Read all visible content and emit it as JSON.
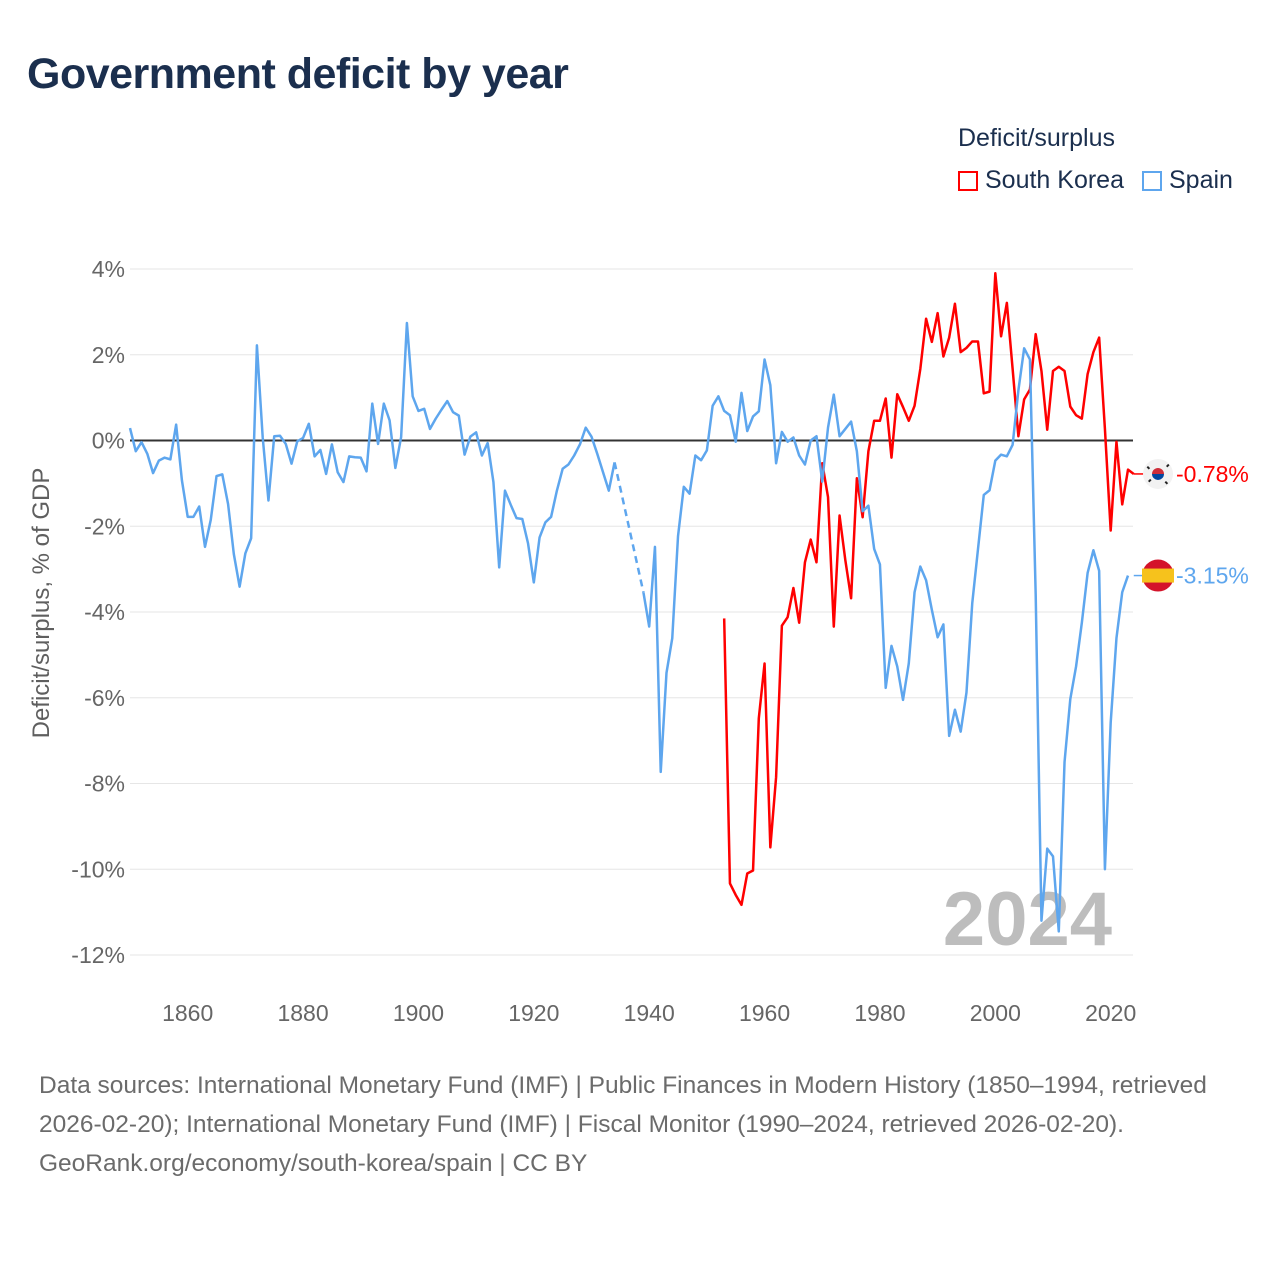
{
  "title": "Government deficit by year",
  "legend": {
    "title": "Deficit/surplus",
    "items": [
      {
        "label": "South Korea",
        "color": "#ff0000"
      },
      {
        "label": "Spain",
        "color": "#5ea6ee"
      }
    ]
  },
  "year_watermark": "2024",
  "end_labels": {
    "south_korea": "-0.78%",
    "spain": "-3.15%"
  },
  "footer": {
    "sources": "Data sources: International Monetary Fund (IMF) | Public Finances in Modern History (1850–1994, retrieved 2026-02-20); International Monetary Fund (IMF) | Fiscal Monitor (1990–2024, retrieved 2026-02-20).",
    "credit": "GeoRank.org/economy/south-korea/spain | CC BY"
  },
  "chart_data": {
    "type": "line",
    "title": "Government deficit by year",
    "xlabel": "",
    "ylabel": "Deficit/surplus, % of GDP",
    "xlim": [
      1850,
      2024
    ],
    "ylim": [
      -12,
      4
    ],
    "xticks": [
      1860,
      1880,
      1900,
      1920,
      1940,
      1960,
      1980,
      2000,
      2020
    ],
    "xtick_labels": [
      "1860",
      "1880",
      "1900",
      "1920",
      "1940",
      "1960",
      "1980",
      "2000",
      "2020"
    ],
    "yticks": [
      4,
      2,
      0,
      -2,
      -4,
      -6,
      -8,
      -10,
      -12
    ],
    "ytick_labels": [
      "4%",
      "2%",
      "0%",
      "-2%",
      "-4%",
      "-6%",
      "-8%",
      "-10%",
      "-12%"
    ],
    "grid": true,
    "legend_position": "top-right",
    "series": [
      {
        "name": "Spain",
        "color": "#5ea6ee",
        "start_year": 1850,
        "values": [
          0.29,
          -0.25,
          -0.04,
          -0.31,
          -0.76,
          -0.47,
          -0.4,
          -0.44,
          0.37,
          -0.93,
          -1.78,
          -1.78,
          -1.54,
          -2.48,
          -1.85,
          -0.83,
          -0.79,
          -1.48,
          -2.65,
          -3.41,
          -2.63,
          -2.28,
          2.22,
          0.08,
          -1.4,
          0.1,
          0.11,
          -0.08,
          -0.54,
          -0.02,
          0.06,
          0.39,
          -0.37,
          -0.22,
          -0.78,
          -0.09,
          -0.74,
          -0.97,
          -0.37,
          -0.39,
          -0.4,
          -0.72,
          0.86,
          -0.08,
          0.86,
          0.47,
          -0.64,
          0.08,
          2.74,
          1.03,
          0.69,
          0.74,
          0.27,
          0.51,
          0.72,
          0.92,
          0.66,
          0.58,
          -0.33,
          0.09,
          0.19,
          -0.35,
          -0.06,
          -0.97,
          -2.96,
          -1.17,
          -1.5,
          -1.81,
          -1.83,
          -2.4,
          -3.31,
          -2.26,
          -1.91,
          -1.78,
          -1.17,
          -0.66,
          -0.56,
          -0.35,
          -0.09,
          0.3,
          0.09,
          -0.31,
          -0.74,
          -1.17,
          -0.51,
          null,
          null,
          null,
          null,
          -3.54,
          -4.34,
          -2.48,
          -7.73,
          -5.42,
          -4.61,
          -2.23,
          -1.08,
          -1.24,
          -0.35,
          -0.46,
          -0.23,
          0.81,
          1.03,
          0.69,
          0.59,
          -0.03,
          1.11,
          0.22,
          0.56,
          0.68,
          1.89,
          1.29,
          -0.53,
          0.2,
          -0.03,
          0.07,
          -0.35,
          -0.56,
          0,
          0.1,
          -0.96,
          0.3,
          1.07,
          0.1,
          0.27,
          0.44,
          -0.25,
          -1.65,
          -1.52,
          -2.53,
          -2.89,
          -5.77,
          -4.79,
          -5.27,
          -6.05,
          -5.2,
          -3.54,
          -2.94,
          -3.26,
          -3.95,
          -4.59,
          -4.29,
          -6.89,
          -6.28,
          -6.79,
          -5.88,
          -3.8,
          -2.53,
          -1.27,
          -1.16,
          -0.47,
          -0.33,
          -0.37,
          -0.1,
          1.17,
          2.15,
          1.89,
          -3.6,
          -11.2,
          -9.52,
          -9.7,
          -11.45,
          -7.5,
          -6.03,
          -5.27,
          -4.25,
          -3.09,
          -2.56,
          -3.04,
          -10.0,
          -6.58,
          -4.61,
          -3.54,
          -3.15
        ]
      },
      {
        "name": "South Korea",
        "color": "#ff0000",
        "start_year": 1953,
        "values": [
          -4.15,
          -10.33,
          -10.6,
          -10.83,
          -10.1,
          -10.03,
          -6.48,
          -5.2,
          -9.49,
          -7.85,
          -4.32,
          -4.12,
          -3.44,
          -4.25,
          -2.84,
          -2.31,
          -2.84,
          -0.53,
          -1.32,
          -4.34,
          -1.75,
          -2.79,
          -3.68,
          -0.88,
          -1.79,
          -0.25,
          0.46,
          0.46,
          0.98,
          -0.4,
          1.08,
          0.78,
          0.46,
          0.81,
          1.67,
          2.84,
          2.3,
          2.97,
          1.96,
          2.4,
          3.19,
          2.06,
          2.16,
          2.31,
          2.31,
          1.1,
          1.14,
          3.9,
          2.43,
          3.21,
          1.67,
          0.1,
          0.96,
          1.19,
          2.48,
          1.62,
          0.25,
          1.62,
          1.72,
          1.62,
          0.79,
          0.59,
          0.51,
          1.55,
          2.06,
          2.4,
          0.27,
          -2.1,
          -0.03,
          -1.49,
          -0.68,
          -0.78
        ]
      }
    ]
  }
}
